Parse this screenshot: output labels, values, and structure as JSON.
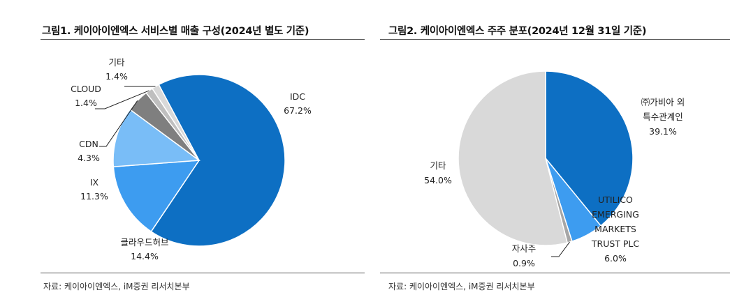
{
  "chart_data": [
    {
      "type": "pie",
      "title": "그림1. 케이아이엔엑스 서비스별 매출 구성(2024년 별도 기준)",
      "source": "자료: 케이아이엔엑스, iM증권 리서치본부",
      "slices": [
        {
          "name": "IDC",
          "value": 67.2,
          "label": "67.2%",
          "color": "#0d6fc3"
        },
        {
          "name": "클라우드허브",
          "value": 14.4,
          "label": "14.4%",
          "color": "#3d9cf0"
        },
        {
          "name": "IX",
          "value": 11.3,
          "label": "11.3%",
          "color": "#79bdf7"
        },
        {
          "name": "CDN",
          "value": 4.3,
          "label": "4.3%",
          "color": "#7f7f7f"
        },
        {
          "name": "CLOUD",
          "value": 1.4,
          "label": "1.4%",
          "color": "#bfbfbf"
        },
        {
          "name": "기타",
          "value": 1.4,
          "label": "1.4%",
          "color": "#d9d9d9"
        }
      ]
    },
    {
      "type": "pie",
      "title": "그림2. 케이아이엔엑스 주주 분포(2024년 12월 31일 기준)",
      "source": "자료: 케이아이엔엑스, iM증권 리서치본부",
      "slices": [
        {
          "name": "㈜가비아 외 특수관계인",
          "name_lines": [
            "㈜가비아 외",
            "특수관계인"
          ],
          "value": 39.1,
          "label": "39.1%",
          "color": "#0d6fc3"
        },
        {
          "name": "UTILICO EMERGING MARKETS TRUST PLC",
          "name_lines": [
            "UTILICO",
            "EMERGING",
            "MARKETS",
            "TRUST PLC"
          ],
          "value": 6.0,
          "label": "6.0%",
          "color": "#3d9cf0"
        },
        {
          "name": "자사주",
          "name_lines": [
            "자사주"
          ],
          "value": 0.9,
          "label": "0.9%",
          "color": "#a6a6a6"
        },
        {
          "name": "기타",
          "name_lines": [
            "기타"
          ],
          "value": 54.0,
          "label": "54.0%",
          "color": "#d9d9d9"
        }
      ]
    }
  ]
}
